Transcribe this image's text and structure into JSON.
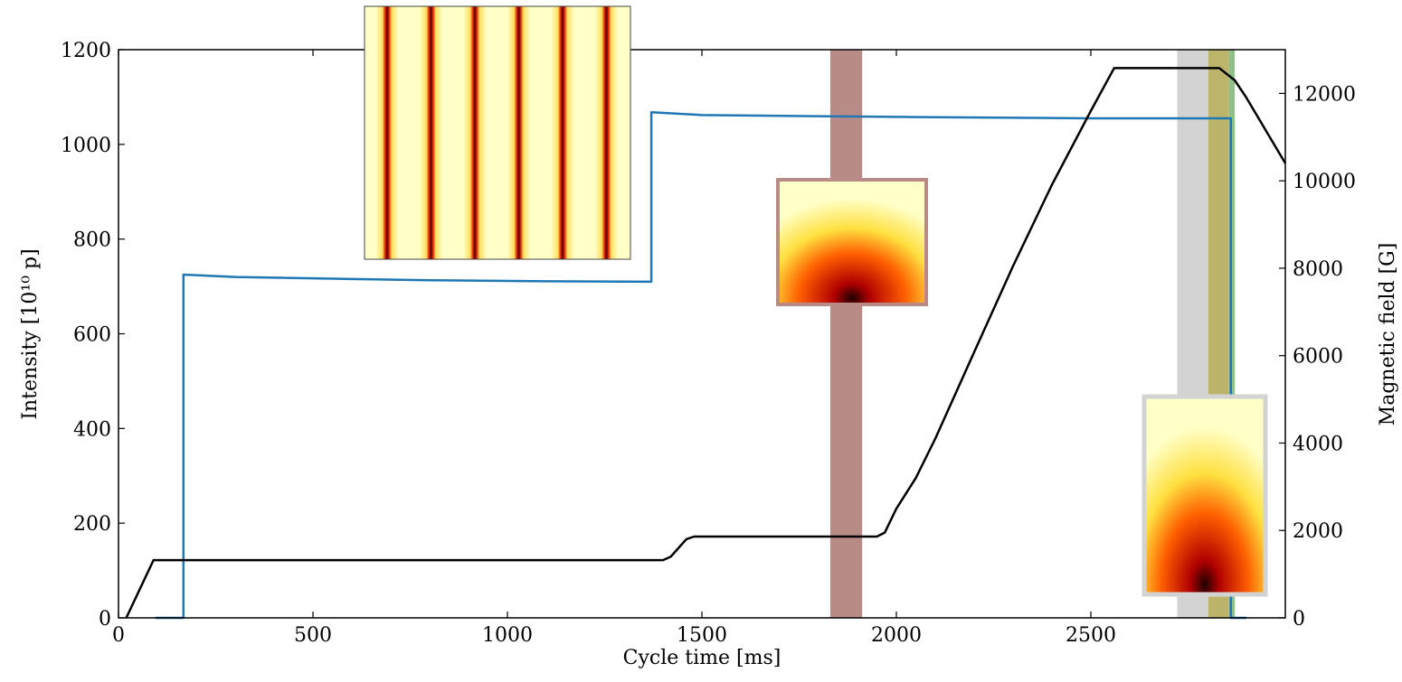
{
  "chart_data": {
    "type": "line",
    "xlabel": "Cycle time [ms]",
    "ylabel": "Intensity [10¹⁰ p]",
    "y2label": "Magnetic field [G]",
    "xlim": [
      0,
      3000
    ],
    "xticks": [
      0,
      500,
      1000,
      1500,
      2000,
      2500
    ],
    "ylim": [
      0,
      1200
    ],
    "yticks": [
      0,
      200,
      400,
      600,
      800,
      1000,
      1200
    ],
    "y2lim": [
      0,
      13000
    ],
    "y2ticks": [
      0,
      2000,
      4000,
      6000,
      8000,
      10000,
      12000
    ],
    "bands": [
      {
        "x0": 1830,
        "x1": 1912,
        "color": "#b98b87"
      },
      {
        "x0": 2722,
        "x1": 2802,
        "color": "#d3d3d3"
      },
      {
        "x0": 2802,
        "x1": 2855,
        "color": "#bcb46a"
      },
      {
        "x0": 2855,
        "x1": 2870,
        "color": "#8fc08a"
      }
    ],
    "series": [
      {
        "color": "#1f77b4",
        "x": [
          95,
          167,
          167,
          300,
          500,
          800,
          1100,
          1370,
          1370,
          1500,
          2000,
          2500,
          2860,
          2860,
          2900
        ],
        "values": [
          0,
          0,
          725,
          720,
          717,
          713,
          711,
          710,
          1068,
          1062,
          1058,
          1055,
          1055,
          0,
          0
        ]
      },
      {
        "color": "#000000",
        "axis": "y2",
        "x": [
          20,
          90,
          1400,
          1420,
          1440,
          1460,
          1480,
          1950,
          1970,
          2000,
          2050,
          2100,
          2200,
          2300,
          2400,
          2500,
          2560,
          2830,
          2870,
          2900,
          3000
        ],
        "values": [
          0,
          1320,
          1320,
          1400,
          1600,
          1800,
          1860,
          1860,
          1950,
          2500,
          3200,
          4100,
          6080,
          8050,
          9910,
          11600,
          12580,
          12580,
          12300,
          11900,
          10400
        ]
      }
    ]
  }
}
